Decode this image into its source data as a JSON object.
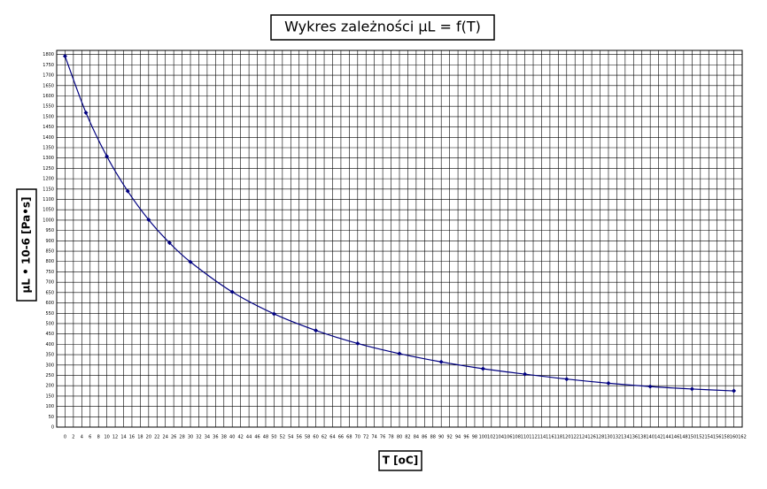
{
  "chart_data": {
    "type": "line",
    "title": "Wykres zależności μL = f(T)",
    "x_label": "T [oC]",
    "y_label": "μL • 10-6 [Pa•s]",
    "x": [
      0,
      5,
      10,
      15,
      20,
      25,
      30,
      40,
      50,
      60,
      70,
      80,
      90,
      100,
      110,
      120,
      130,
      140,
      150,
      160
    ],
    "series": [
      {
        "color": "#000080",
        "values": [
          1792,
          1519,
          1308,
          1140,
          1002,
          890,
          798,
          653,
          547,
          467,
          404,
          355,
          315,
          282,
          256,
          232,
          212,
          196,
          184,
          175
        ]
      }
    ],
    "xlim": [
      -2,
      162
    ],
    "ylim": [
      0,
      1820
    ],
    "xticks": [
      0,
      2,
      4,
      6,
      8,
      10,
      12,
      14,
      16,
      18,
      20,
      22,
      24,
      26,
      28,
      30,
      32,
      34,
      36,
      38,
      40,
      42,
      44,
      46,
      48,
      50,
      52,
      54,
      56,
      58,
      60,
      62,
      64,
      66,
      68,
      70,
      72,
      74,
      76,
      78,
      80,
      82,
      84,
      86,
      88,
      90,
      92,
      94,
      96,
      98,
      100,
      102,
      104,
      106,
      108,
      110,
      112,
      114,
      116,
      118,
      120,
      122,
      124,
      126,
      128,
      130,
      132,
      134,
      136,
      138,
      140,
      142,
      144,
      146,
      148,
      150,
      152,
      154,
      156,
      158,
      160,
      162
    ],
    "yticks": [
      0,
      50,
      100,
      150,
      200,
      250,
      300,
      350,
      400,
      450,
      500,
      550,
      600,
      650,
      700,
      750,
      800,
      850,
      900,
      950,
      1000,
      1050,
      1100,
      1150,
      1200,
      1250,
      1300,
      1350,
      1400,
      1450,
      1500,
      1550,
      1600,
      1650,
      1700,
      1750,
      1800
    ],
    "grid": true
  }
}
